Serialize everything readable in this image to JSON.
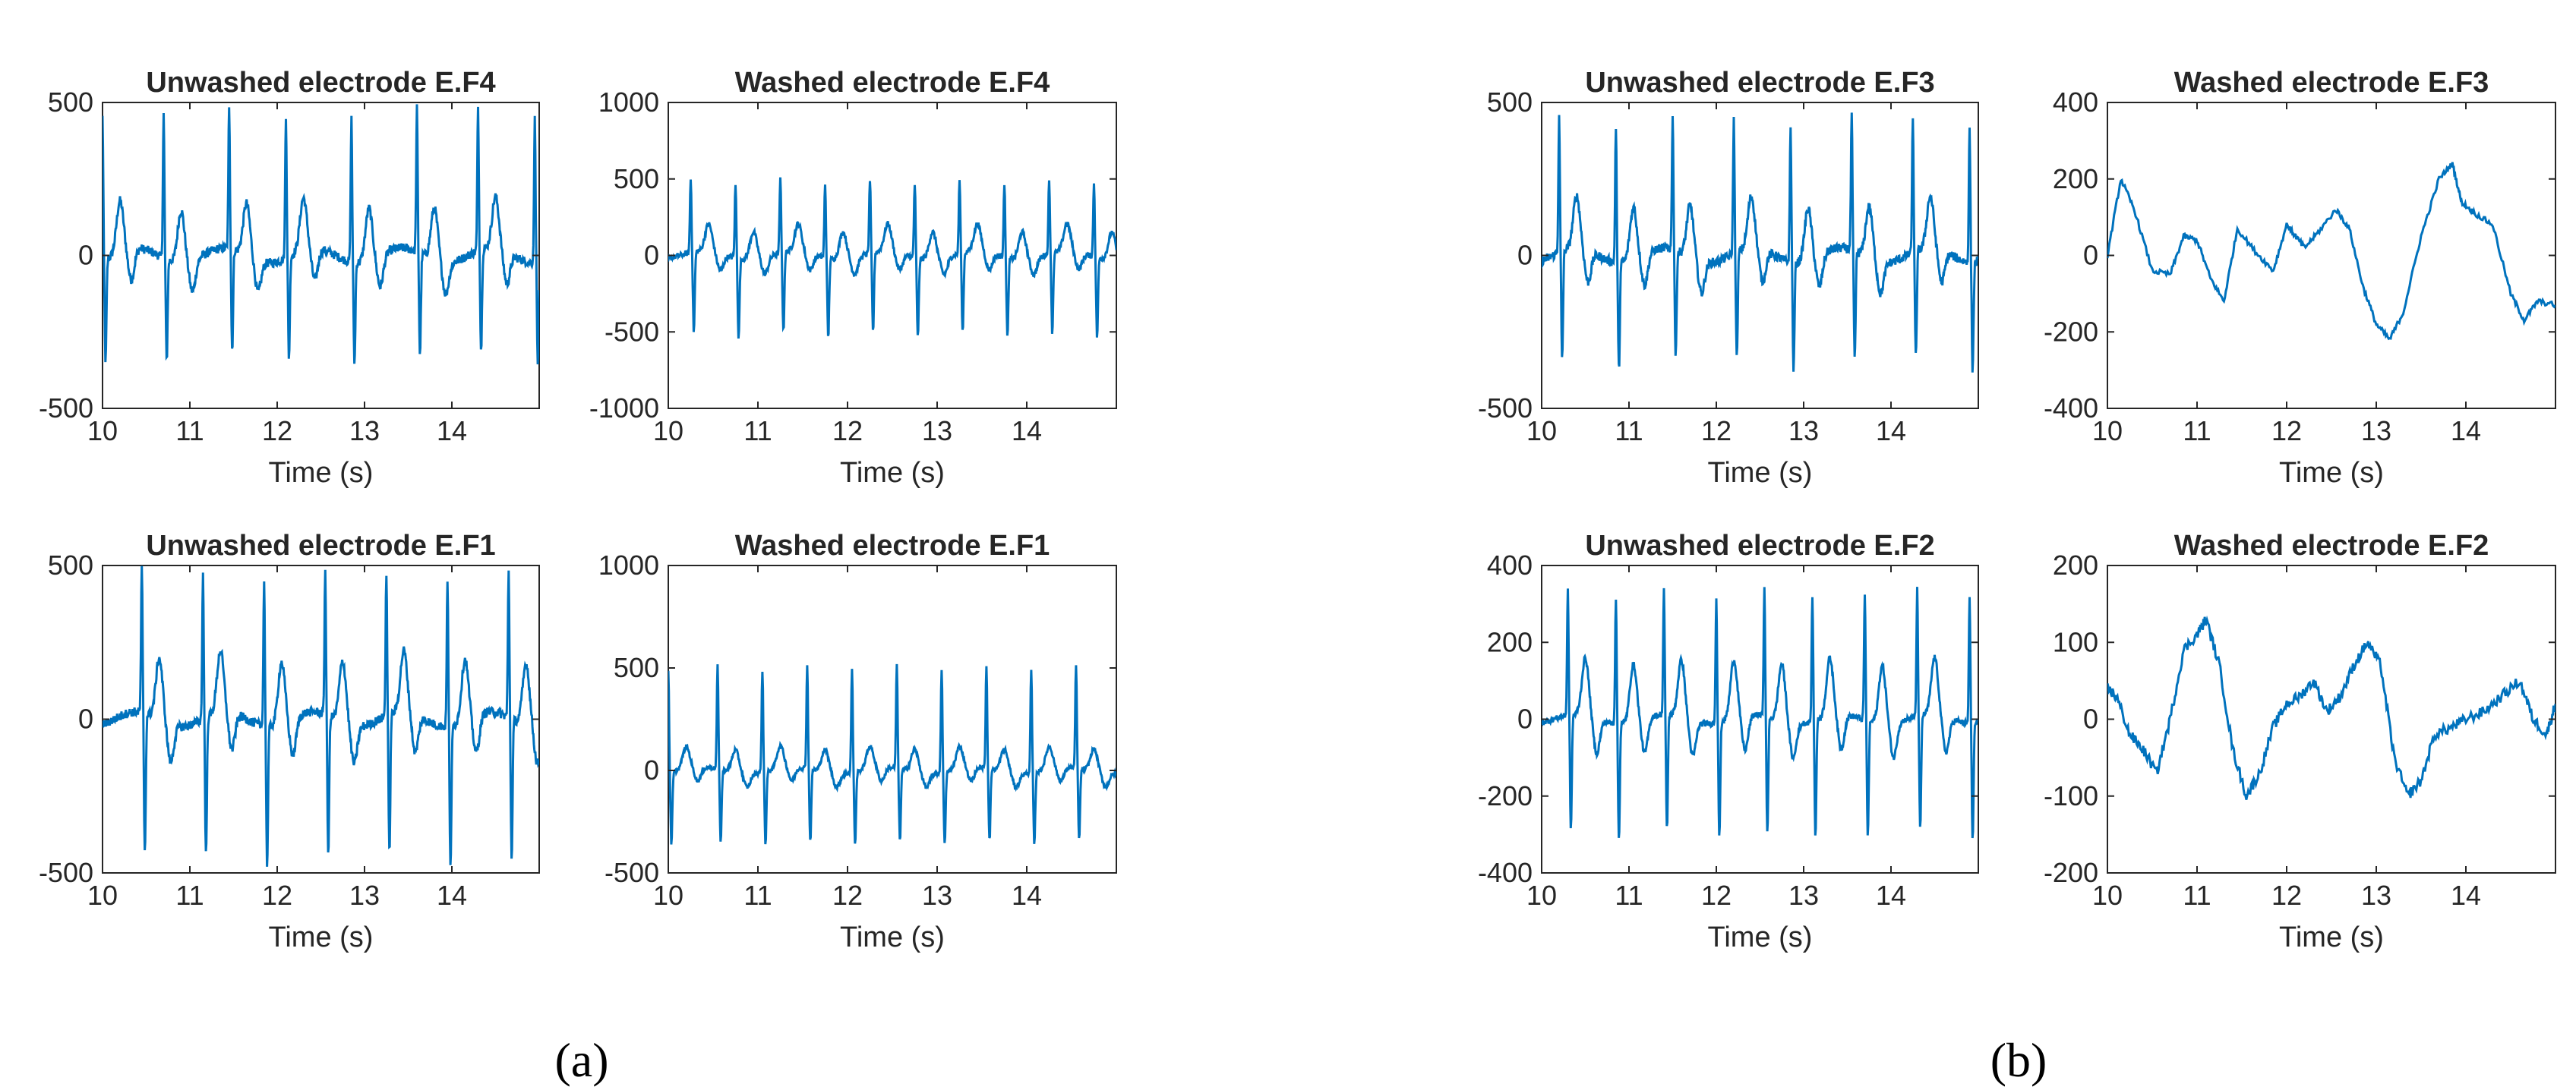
{
  "figure": {
    "label_a": "(a)",
    "label_b": "(b)"
  },
  "chart_data": [
    {
      "type": "line",
      "title": "Unwashed electrode E.F4",
      "xlabel": "Time (s)",
      "ylabel": "",
      "xlim": [
        10,
        15
      ],
      "ylim": [
        -500,
        500
      ],
      "xticks": [
        10,
        11,
        12,
        13,
        14
      ],
      "yticks": [
        -500,
        0,
        500
      ],
      "grid": false,
      "series": [
        {
          "name": "signal",
          "color": "#0072BD",
          "signal": {
            "base": 0,
            "amp": 60,
            "r": 470,
            "s": -330,
            "t": 170,
            "beats": [
              10.0,
              10.7,
              11.45,
              12.1,
              12.85,
              13.6,
              14.3,
              14.95
            ]
          }
        }
      ]
    },
    {
      "type": "line",
      "title": "Washed electrode E.F4",
      "xlabel": "Time (s)",
      "ylabel": "",
      "xlim": [
        10,
        15
      ],
      "ylim": [
        -1000,
        1000
      ],
      "xticks": [
        10,
        11,
        12,
        13,
        14
      ],
      "yticks": [
        -1000,
        -500,
        0,
        500,
        1000
      ],
      "grid": false,
      "series": [
        {
          "name": "signal",
          "color": "#0072BD",
          "signal": {
            "base": 0,
            "amp": 70,
            "r": 480,
            "s": -520,
            "t": 180,
            "beats": [
              10.25,
              10.75,
              11.25,
              11.75,
              12.25,
              12.75,
              13.25,
              13.75,
              14.25,
              14.75
            ]
          }
        }
      ]
    },
    {
      "type": "line",
      "title": "Unwashed electrode E.F3",
      "xlabel": "Time (s)",
      "ylabel": "",
      "xlim": [
        10,
        15
      ],
      "ylim": [
        -500,
        500
      ],
      "xticks": [
        10,
        11,
        12,
        13,
        14
      ],
      "yticks": [
        -500,
        0,
        500
      ],
      "grid": false,
      "series": [
        {
          "name": "signal",
          "color": "#0072BD",
          "signal": {
            "base": 0,
            "amp": 60,
            "r": 440,
            "s": -350,
            "t": 170,
            "beats": [
              10.2,
              10.85,
              11.5,
              12.2,
              12.85,
              13.55,
              14.25,
              14.9
            ]
          }
        }
      ]
    },
    {
      "type": "line",
      "title": "Washed electrode E.F3",
      "xlabel": "Time (s)",
      "ylabel": "",
      "xlim": [
        10,
        15
      ],
      "ylim": [
        -400,
        400
      ],
      "xticks": [
        10,
        11,
        12,
        13,
        14
      ],
      "yticks": [
        -400,
        -200,
        0,
        200,
        400
      ],
      "grid": false,
      "series": [
        {
          "name": "signal",
          "color": "#0072BD",
          "points": [
            [
              10.0,
              0
            ],
            [
              10.15,
              200
            ],
            [
              10.3,
              120
            ],
            [
              10.5,
              -40
            ],
            [
              10.7,
              -50
            ],
            [
              10.85,
              50
            ],
            [
              11.0,
              40
            ],
            [
              11.15,
              -60
            ],
            [
              11.3,
              -120
            ],
            [
              11.45,
              70
            ],
            [
              11.65,
              10
            ],
            [
              11.85,
              -40
            ],
            [
              12.0,
              80
            ],
            [
              12.1,
              50
            ],
            [
              12.2,
              20
            ],
            [
              12.35,
              60
            ],
            [
              12.55,
              120
            ],
            [
              12.7,
              70
            ],
            [
              12.85,
              -80
            ],
            [
              13.0,
              -180
            ],
            [
              13.15,
              -220
            ],
            [
              13.3,
              -150
            ],
            [
              13.5,
              50
            ],
            [
              13.7,
              200
            ],
            [
              13.85,
              240
            ],
            [
              13.95,
              140
            ],
            [
              14.1,
              110
            ],
            [
              14.3,
              80
            ],
            [
              14.5,
              -100
            ],
            [
              14.65,
              -170
            ],
            [
              14.8,
              -120
            ],
            [
              15.0,
              -130
            ]
          ]
        }
      ]
    },
    {
      "type": "line",
      "title": "Unwashed electrode E.F1",
      "xlabel": "Time (s)",
      "ylabel": "",
      "xlim": [
        10,
        15
      ],
      "ylim": [
        -500,
        500
      ],
      "xticks": [
        10,
        11,
        12,
        13,
        14
      ],
      "yticks": [
        -500,
        0,
        500
      ],
      "grid": false,
      "series": [
        {
          "name": "signal",
          "color": "#0072BD",
          "signal": {
            "base": 0,
            "amp": 60,
            "r": 470,
            "s": -450,
            "t": 200,
            "beats": [
              10.45,
              11.15,
              11.85,
              12.55,
              13.25,
              13.95,
              14.65
            ]
          }
        }
      ]
    },
    {
      "type": "line",
      "title": "Washed electrode E.F1",
      "xlabel": "Time (s)",
      "ylabel": "",
      "xlim": [
        10,
        15
      ],
      "ylim": [
        -500,
        1000
      ],
      "xticks": [
        10,
        11,
        12,
        13,
        14
      ],
      "yticks": [
        -500,
        0,
        500,
        1000
      ],
      "grid": false,
      "series": [
        {
          "name": "signal",
          "color": "#0072BD",
          "signal": {
            "base": 0,
            "amp": 40,
            "r": 500,
            "s": -350,
            "t": 110,
            "beats": [
              10.0,
              10.55,
              11.05,
              11.55,
              12.05,
              12.55,
              13.05,
              13.55,
              14.05,
              14.55
            ]
          }
        }
      ]
    },
    {
      "type": "line",
      "title": "Unwashed electrode E.F2",
      "xlabel": "Time (s)",
      "ylabel": "",
      "xlim": [
        10,
        15
      ],
      "ylim": [
        -400,
        400
      ],
      "xticks": [
        10,
        11,
        12,
        13,
        14
      ],
      "yticks": [
        -400,
        -200,
        0,
        200,
        400
      ],
      "grid": false,
      "series": [
        {
          "name": "signal",
          "color": "#0072BD",
          "signal": {
            "base": 0,
            "amp": 30,
            "r": 330,
            "s": -300,
            "t": 150,
            "beats": [
              10.3,
              10.85,
              11.4,
              12.0,
              12.55,
              13.1,
              13.7,
              14.3,
              14.9
            ]
          }
        }
      ]
    },
    {
      "type": "line",
      "title": "Washed electrode E.F2",
      "xlabel": "Time (s)",
      "ylabel": "",
      "xlim": [
        10,
        15
      ],
      "ylim": [
        -200,
        200
      ],
      "xticks": [
        10,
        11,
        12,
        13,
        14
      ],
      "yticks": [
        -200,
        -100,
        0,
        100,
        200
      ],
      "grid": false,
      "series": [
        {
          "name": "signal",
          "color": "#0072BD",
          "points": [
            [
              10.0,
              40
            ],
            [
              10.1,
              30
            ],
            [
              10.25,
              -20
            ],
            [
              10.4,
              -40
            ],
            [
              10.55,
              -70
            ],
            [
              10.7,
              0
            ],
            [
              10.85,
              90
            ],
            [
              11.0,
              110
            ],
            [
              11.1,
              130
            ],
            [
              11.25,
              70
            ],
            [
              11.4,
              -40
            ],
            [
              11.55,
              -100
            ],
            [
              11.7,
              -70
            ],
            [
              11.85,
              -10
            ],
            [
              12.0,
              20
            ],
            [
              12.15,
              30
            ],
            [
              12.3,
              50
            ],
            [
              12.45,
              10
            ],
            [
              12.6,
              30
            ],
            [
              12.75,
              70
            ],
            [
              12.9,
              100
            ],
            [
              13.05,
              70
            ],
            [
              13.2,
              -50
            ],
            [
              13.35,
              -100
            ],
            [
              13.5,
              -80
            ],
            [
              13.65,
              -20
            ],
            [
              13.85,
              -10
            ],
            [
              14.0,
              0
            ],
            [
              14.2,
              10
            ],
            [
              14.4,
              30
            ],
            [
              14.6,
              50
            ],
            [
              14.75,
              0
            ],
            [
              14.9,
              -20
            ],
            [
              15.0,
              20
            ]
          ]
        }
      ]
    }
  ]
}
